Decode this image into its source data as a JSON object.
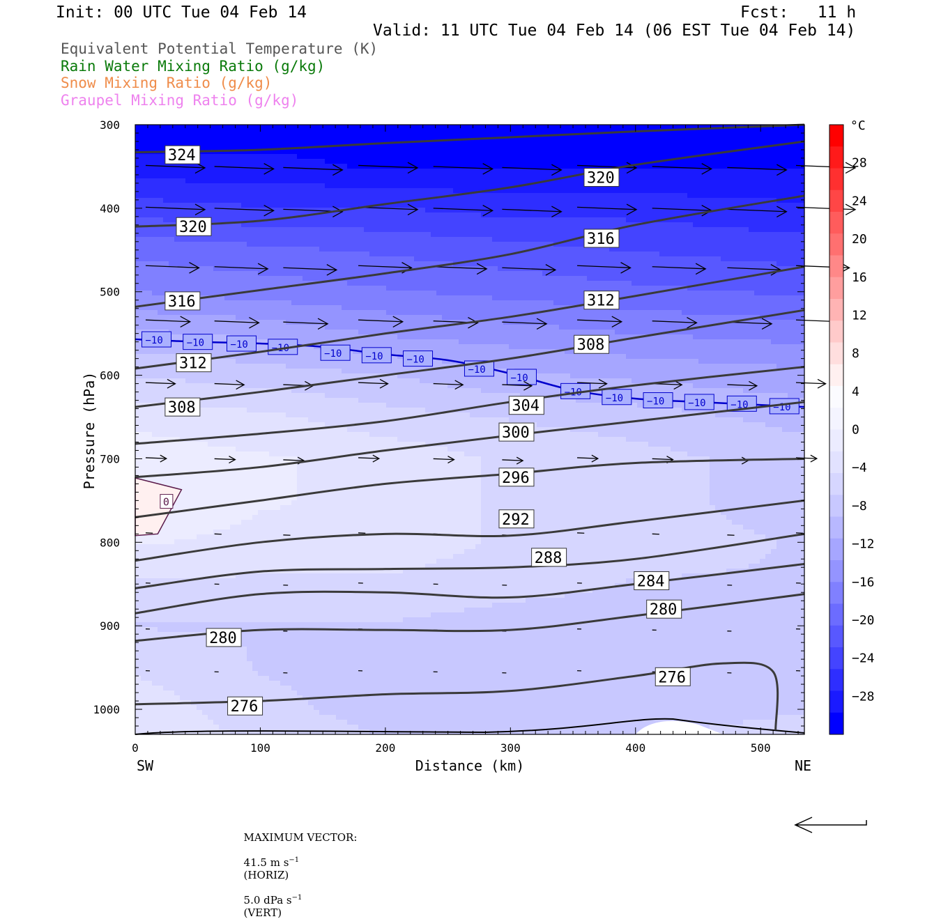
{
  "header": {
    "init": "Init: 00 UTC Tue 04 Feb 14",
    "fcst": "Fcst:   11 h",
    "valid": "Valid: 11 UTC Tue 04 Feb 14 (06 EST Tue 04 Feb 14)"
  },
  "legend": [
    {
      "label": "Equivalent Potential Temperature (K)",
      "color": "#555555"
    },
    {
      "label": "Rain Water Mixing Ratio (g/kg)",
      "color": "#0a7a0a"
    },
    {
      "label": "Snow Mixing Ratio (g/kg)",
      "color": "#ef8c4a"
    },
    {
      "label": "Graupel Mixing Ratio (g/kg)",
      "color": "#ee82ee"
    }
  ],
  "footer": {
    "label": "MAXIMUM VECTOR:",
    "horiz": "41.5 m s",
    "horiz_unit": "(HORIZ)",
    "vert": "5.0 dPa s",
    "vert_unit": "(VERT)",
    "exp": "−1"
  },
  "chart_data": {
    "type": "heatmap",
    "description_axes": {
      "xlabel": "Distance (km)",
      "ylabel": "Pressure (hPa)",
      "xlim": [
        0,
        535
      ],
      "ylim": [
        1030,
        300
      ],
      "x_ticks": [
        "0",
        "100",
        "200",
        "300",
        "400",
        "500"
      ],
      "y_ticks": [
        "300",
        "400",
        "500",
        "600",
        "700",
        "800",
        "900",
        "1000"
      ],
      "x_end_left": "SW",
      "x_end_right": "NE"
    },
    "colorbar": {
      "unit": "°C",
      "ticks": [
        "28",
        "24",
        "20",
        "16",
        "12",
        "8",
        "4",
        "0",
        "−4",
        "−8",
        "−12",
        "−16",
        "−20",
        "−24",
        "−28"
      ],
      "range": [
        -32,
        32
      ],
      "colors": [
        "#0000ff",
        "#1a1aff",
        "#2e2eff",
        "#4444ff",
        "#5858ff",
        "#6c6cff",
        "#8080ff",
        "#9494ff",
        "#a6a6ff",
        "#b8b8ff",
        "#c8c8ff",
        "#d6d6ff",
        "#e2e2ff",
        "#ececff",
        "#f4f4ff",
        "#fbfbff",
        "#fff0f0",
        "#ffdede",
        "#ffcaca",
        "#ffb4b4",
        "#ff9e9e",
        "#ff8888",
        "#ff7070",
        "#ff5c5c",
        "#ff4646",
        "#ff3030",
        "#ff1a1a",
        "#ff0000"
      ]
    },
    "temperature_field": {
      "rows_pressure": [
        300,
        350,
        400,
        450,
        500,
        550,
        600,
        650,
        700,
        750,
        800,
        850,
        900,
        950,
        1000,
        1030
      ],
      "values_degC": [
        [
          -31,
          -31,
          -31,
          -31,
          -31,
          -31
        ],
        [
          -29,
          -29,
          -30,
          -30,
          -30,
          -30
        ],
        [
          -24,
          -25,
          -25,
          -26,
          -26,
          -27
        ],
        [
          -19,
          -20,
          -21,
          -22,
          -23,
          -24
        ],
        [
          -16,
          -17,
          -18,
          -19,
          -20,
          -21
        ],
        [
          -11,
          -12,
          -14,
          -15,
          -16,
          -17
        ],
        [
          -7,
          -8,
          -9,
          -11,
          -12,
          -13
        ],
        [
          -3,
          -4,
          -6,
          -7,
          -8,
          -10
        ],
        [
          -1,
          -2,
          -3,
          -5,
          -6,
          -8
        ],
        [
          0,
          -2,
          -3,
          -5,
          -6,
          -8
        ],
        [
          -2,
          -3,
          -3,
          -5,
          -6,
          -7
        ],
        [
          -5,
          -5,
          -5,
          -6,
          -7,
          -7
        ],
        [
          -7,
          -7,
          -7,
          -8,
          -8,
          -8
        ],
        [
          -5,
          -7,
          -8,
          -8,
          -8,
          -8
        ],
        [
          -3,
          -6,
          -8,
          -8,
          -8,
          -7
        ],
        [
          -3,
          -5,
          -7,
          -7,
          -7,
          -6
        ]
      ],
      "columns_km": [
        0,
        100,
        200,
        300,
        400,
        535
      ]
    },
    "theta_e_contours": [
      {
        "value": "324",
        "points": [
          [
            0,
            333
          ],
          [
            100,
            330
          ],
          [
            200,
            322
          ],
          [
            300,
            315
          ],
          [
            400,
            308
          ],
          [
            535,
            300
          ]
        ]
      },
      {
        "value": "320",
        "points": [
          [
            0,
            422
          ],
          [
            100,
            415
          ],
          [
            200,
            395
          ],
          [
            300,
            375
          ],
          [
            400,
            348
          ],
          [
            535,
            320
          ]
        ]
      },
      {
        "value": "316",
        "points": [
          [
            0,
            518
          ],
          [
            100,
            498
          ],
          [
            200,
            478
          ],
          [
            300,
            455
          ],
          [
            400,
            420
          ],
          [
            535,
            385
          ]
        ]
      },
      {
        "value": "312",
        "points": [
          [
            0,
            592
          ],
          [
            100,
            572
          ],
          [
            200,
            550
          ],
          [
            300,
            530
          ],
          [
            400,
            505
          ],
          [
            535,
            470
          ]
        ]
      },
      {
        "value": "308",
        "points": [
          [
            0,
            638
          ],
          [
            100,
            620
          ],
          [
            200,
            600
          ],
          [
            300,
            580
          ],
          [
            400,
            555
          ],
          [
            535,
            522
          ]
        ]
      },
      {
        "value": "304",
        "points": [
          [
            0,
            682
          ],
          [
            100,
            670
          ],
          [
            200,
            655
          ],
          [
            300,
            632
          ],
          [
            400,
            612
          ],
          [
            535,
            590
          ]
        ]
      },
      {
        "value": "300",
        "points": [
          [
            0,
            722
          ],
          [
            100,
            710
          ],
          [
            200,
            690
          ],
          [
            300,
            672
          ],
          [
            400,
            655
          ],
          [
            535,
            632
          ]
        ]
      },
      {
        "value": "296",
        "points": [
          [
            0,
            770
          ],
          [
            100,
            750
          ],
          [
            200,
            730
          ],
          [
            300,
            718
          ],
          [
            400,
            705
          ],
          [
            535,
            700
          ]
        ]
      },
      {
        "value": "292",
        "points": [
          [
            0,
            822
          ],
          [
            100,
            800
          ],
          [
            200,
            790
          ],
          [
            300,
            792
          ],
          [
            400,
            775
          ],
          [
            535,
            750
          ]
        ]
      },
      {
        "value": "288",
        "points": [
          [
            0,
            855
          ],
          [
            100,
            835
          ],
          [
            200,
            832
          ],
          [
            300,
            830
          ],
          [
            400,
            820
          ],
          [
            535,
            790
          ]
        ]
      },
      {
        "value": "284",
        "points": [
          [
            0,
            885
          ],
          [
            100,
            862
          ],
          [
            200,
            860
          ],
          [
            300,
            866
          ],
          [
            400,
            850
          ],
          [
            535,
            826
          ]
        ]
      },
      {
        "value": "280",
        "points": [
          [
            0,
            918
          ],
          [
            100,
            905
          ],
          [
            200,
            905
          ],
          [
            300,
            905
          ],
          [
            400,
            888
          ],
          [
            535,
            862
          ]
        ]
      },
      {
        "value": "276",
        "points": [
          [
            0,
            994
          ],
          [
            100,
            990
          ],
          [
            200,
            982
          ],
          [
            300,
            978
          ],
          [
            400,
            960
          ],
          [
            470,
            945
          ],
          [
            510,
            955
          ],
          [
            512,
            1025
          ]
        ]
      }
    ],
    "isotherm": {
      "value": "−10",
      "points": [
        [
          0,
          557
        ],
        [
          50,
          560
        ],
        [
          100,
          562
        ],
        [
          150,
          566
        ],
        [
          200,
          575
        ],
        [
          250,
          582
        ],
        [
          300,
          598
        ],
        [
          350,
          618
        ],
        [
          400,
          628
        ],
        [
          450,
          632
        ],
        [
          535,
          638
        ]
      ]
    },
    "wind_vectors": [
      {
        "p": 350,
        "u": 1.0
      },
      {
        "p": 400,
        "u": 1.0
      },
      {
        "p": 470,
        "u": 0.9
      },
      {
        "p": 535,
        "u": 0.75
      },
      {
        "p": 610,
        "u": 0.5
      },
      {
        "p": 700,
        "u": 0.35
      },
      {
        "p": 790,
        "u": 0.12
      },
      {
        "p": 850,
        "u": 0.08
      },
      {
        "p": 905,
        "u": 0.03
      },
      {
        "p": 955,
        "u": 0.03
      }
    ],
    "freezing_region": {
      "label": "0"
    }
  }
}
